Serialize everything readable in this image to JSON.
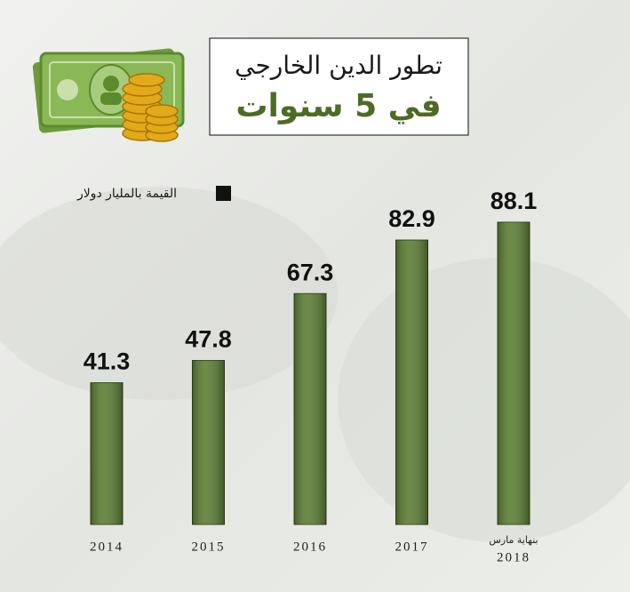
{
  "chart_data": {
    "type": "bar",
    "title": "تطور الدين الخارجي",
    "subtitle": "في 5 سنوات",
    "categories": [
      "2014",
      "2015",
      "2016",
      "2017",
      "2018"
    ],
    "annotation": "بنهاية مارس",
    "series": [
      {
        "name": "القيمة بالمليار دولار",
        "color": "#5c7d34",
        "values": [
          41.3,
          47.8,
          67.3,
          82.9,
          88.1
        ]
      }
    ],
    "legend_color": "#111111"
  }
}
